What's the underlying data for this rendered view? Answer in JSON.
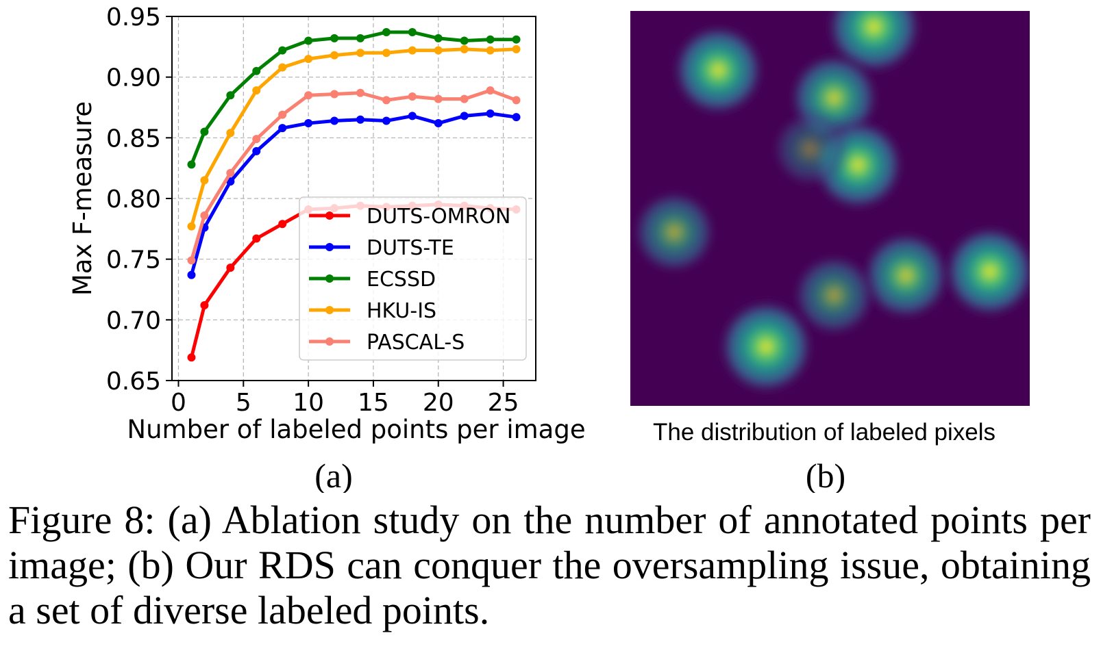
{
  "chart_data": [
    {
      "type": "line",
      "x": [
        1,
        2,
        4,
        6,
        8,
        10,
        12,
        14,
        16,
        18,
        20,
        22,
        24,
        26
      ],
      "series": [
        {
          "name": "DUTS-OMRON",
          "color": "#ff0000",
          "values": [
            0.669,
            0.712,
            0.743,
            0.767,
            0.779,
            0.791,
            0.792,
            0.794,
            0.793,
            0.794,
            0.795,
            0.794,
            0.792,
            0.791
          ]
        },
        {
          "name": "DUTS-TE",
          "color": "#0000ff",
          "values": [
            0.737,
            0.776,
            0.814,
            0.839,
            0.858,
            0.862,
            0.864,
            0.865,
            0.864,
            0.868,
            0.862,
            0.868,
            0.87,
            0.867
          ]
        },
        {
          "name": "ECSSD",
          "color": "#008000",
          "values": [
            0.828,
            0.855,
            0.885,
            0.905,
            0.922,
            0.93,
            0.932,
            0.932,
            0.937,
            0.937,
            0.932,
            0.93,
            0.931,
            0.931
          ]
        },
        {
          "name": "HKU-IS",
          "color": "#ffa500",
          "values": [
            0.777,
            0.815,
            0.854,
            0.889,
            0.908,
            0.915,
            0.918,
            0.92,
            0.92,
            0.922,
            0.922,
            0.923,
            0.922,
            0.923
          ]
        },
        {
          "name": "PASCAL-S",
          "color": "#fa8072",
          "values": [
            0.749,
            0.786,
            0.821,
            0.849,
            0.869,
            0.885,
            0.886,
            0.887,
            0.881,
            0.884,
            0.882,
            0.882,
            0.889,
            0.881
          ]
        }
      ],
      "xlabel": "Number of labeled points per image",
      "ylabel": "Max F-measure",
      "xlim": [
        -0.5,
        27.5
      ],
      "ylim": [
        0.65,
        0.95
      ],
      "xticks": [
        "0",
        "5",
        "10",
        "15",
        "20",
        "25"
      ],
      "xtick_values": [
        0,
        5,
        10,
        15,
        20,
        25
      ],
      "yticks": [
        "0.65",
        "0.70",
        "0.75",
        "0.80",
        "0.85",
        "0.90",
        "0.95"
      ],
      "ytick_values": [
        0.65,
        0.7,
        0.75,
        0.8,
        0.85,
        0.9,
        0.95
      ],
      "grid": true,
      "legend_position": "lower-right"
    },
    {
      "type": "heatmap",
      "title": "The distribution of labeled pixels",
      "background_color": "#440154",
      "colormap": "viridis",
      "blobs": [
        {
          "cx": 0.61,
          "cy": 0.04,
          "intensity": 1.0
        },
        {
          "cx": 0.22,
          "cy": 0.15,
          "intensity": 0.85
        },
        {
          "cx": 0.51,
          "cy": 0.22,
          "intensity": 0.75
        },
        {
          "cx": 0.57,
          "cy": 0.39,
          "intensity": 0.85
        },
        {
          "cx": 0.45,
          "cy": 0.35,
          "intensity": 0.18
        },
        {
          "cx": 0.11,
          "cy": 0.56,
          "intensity": 0.5
        },
        {
          "cx": 0.69,
          "cy": 0.67,
          "intensity": 0.72
        },
        {
          "cx": 0.9,
          "cy": 0.66,
          "intensity": 0.88
        },
        {
          "cx": 0.51,
          "cy": 0.72,
          "intensity": 0.45
        },
        {
          "cx": 0.34,
          "cy": 0.85,
          "intensity": 1.0
        }
      ]
    }
  ],
  "subcaption_a": "(a)",
  "subcaption_b": "(b)",
  "caption": "Figure 8: (a) Ablation study on the number of annotated points per image; (b) Our RDS can conquer the oversampling issue, obtaining a set of diverse labeled points."
}
